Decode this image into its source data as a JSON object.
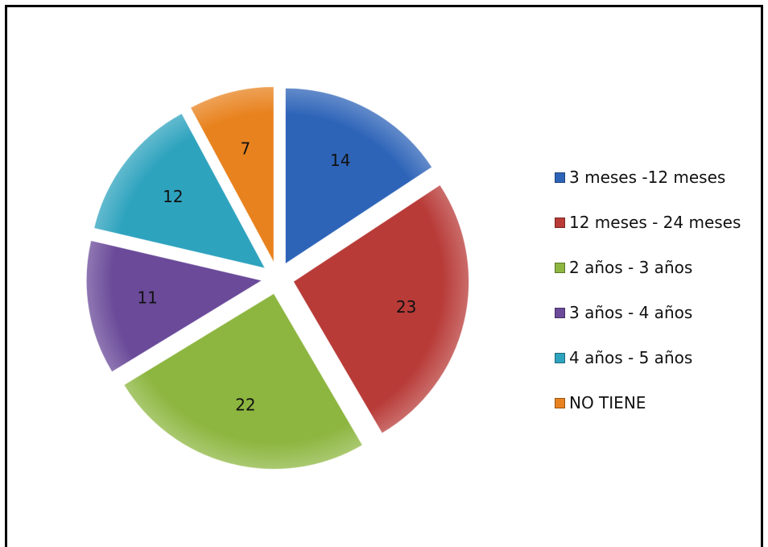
{
  "chart_data": {
    "type": "pie",
    "exploded": true,
    "legend_position": "right",
    "slices": [
      {
        "label": "3 meses -12 meses",
        "value": 14,
        "color": "#2E64B8"
      },
      {
        "label": "12 meses - 24 meses",
        "value": 23,
        "color": "#B83B38"
      },
      {
        "label": "2 años - 3 años",
        "value": 22,
        "color": "#8DB640"
      },
      {
        "label": "3 años - 4 años",
        "value": 11,
        "color": "#6A4A99"
      },
      {
        "label": "4 años - 5 años",
        "value": 12,
        "color": "#2EA3BE"
      },
      {
        "label": "NO TIENE",
        "value": 7,
        "color": "#E8821E"
      }
    ]
  }
}
